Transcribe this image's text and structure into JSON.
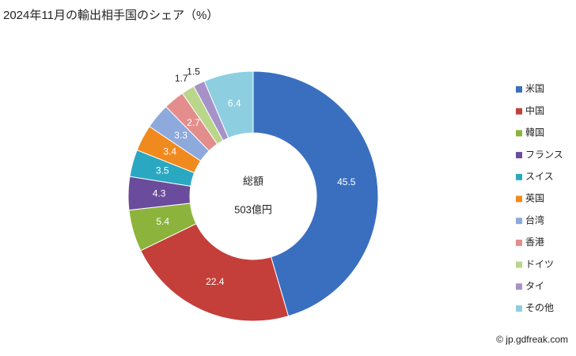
{
  "chart_data": {
    "type": "donut",
    "title": "2024年11月の輸出相手国のシェア（%）",
    "categories": [
      "米国",
      "中国",
      "韓国",
      "フランス",
      "スイス",
      "英国",
      "台湾",
      "香港",
      "ドイツ",
      "タイ",
      "その他"
    ],
    "values": [
      45.5,
      22.4,
      5.4,
      4.3,
      3.5,
      3.4,
      3.3,
      2.7,
      1.7,
      1.5,
      6.4
    ],
    "colors": [
      "#3a6fc0",
      "#c43e3a",
      "#8cb43c",
      "#6b4b9c",
      "#2aa8c2",
      "#f08a1e",
      "#8ea9dc",
      "#e38e8c",
      "#b9d68a",
      "#a692c9",
      "#8dcfe0"
    ],
    "center_label": "総額",
    "center_value": "503億円",
    "source": "© jp.gdfreak.com"
  }
}
